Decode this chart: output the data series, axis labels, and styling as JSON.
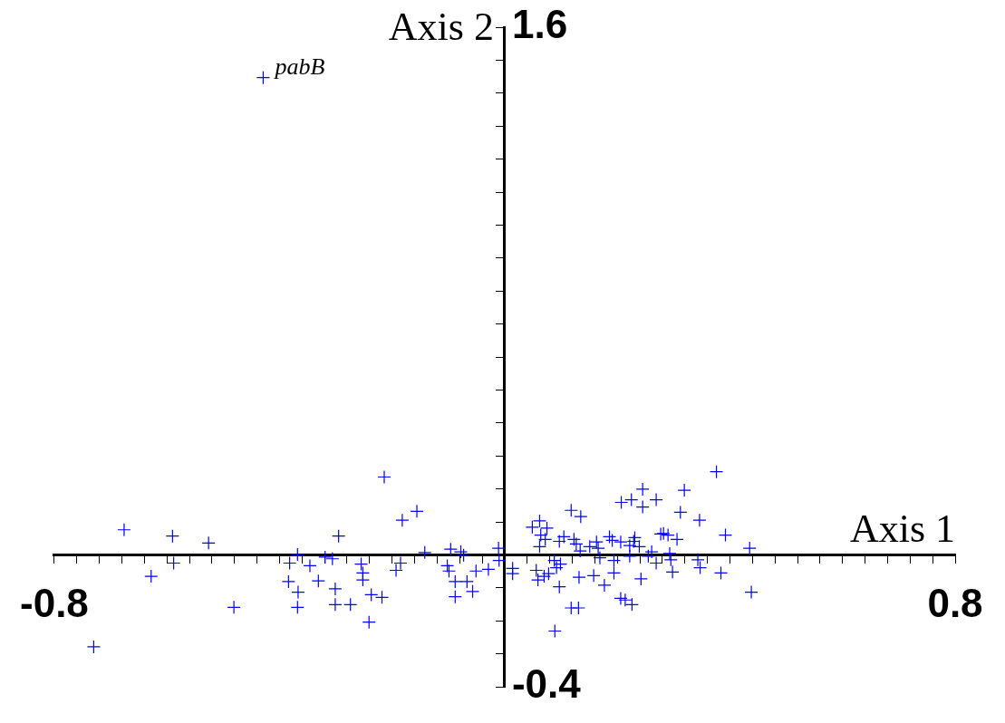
{
  "chart_data": {
    "type": "scatter",
    "xlabel": "Axis 1",
    "ylabel": "Axis 2",
    "color": "#0000ff",
    "marker": "cross",
    "legend": false,
    "grid": false,
    "xlim": [
      -0.8,
      0.8
    ],
    "ylim": [
      -0.4,
      1.6
    ],
    "xticks": [
      -0.8,
      {
        "value": -0.76,
        "label": null
      },
      {
        "value": -0.72,
        "label": null
      },
      {
        "value": -0.68,
        "label": null
      },
      {
        "value": -0.64,
        "label": null
      },
      {
        "value": -0.6,
        "label": null
      },
      {
        "value": -0.56,
        "label": null
      },
      {
        "value": -0.52,
        "label": null
      },
      {
        "value": -0.48,
        "label": null
      },
      {
        "value": -0.44,
        "label": null
      },
      {
        "value": -0.4,
        "label": null
      },
      {
        "value": -0.36,
        "label": null
      },
      {
        "value": -0.32,
        "label": null
      },
      {
        "value": -0.28,
        "label": null
      },
      {
        "value": -0.24,
        "label": null
      },
      {
        "value": -0.2,
        "label": null
      },
      {
        "value": -0.16,
        "label": null
      },
      {
        "value": -0.12,
        "label": null
      },
      {
        "value": -0.08,
        "label": null
      },
      {
        "value": -0.04,
        "label": null
      },
      {
        "value": 0.04,
        "label": null
      },
      {
        "value": 0.08,
        "label": null
      },
      {
        "value": 0.12,
        "label": null
      },
      {
        "value": 0.16,
        "label": null
      },
      {
        "value": 0.2,
        "label": null
      },
      {
        "value": 0.24,
        "label": null
      },
      {
        "value": 0.28,
        "label": null
      },
      {
        "value": 0.32,
        "label": null
      },
      {
        "value": 0.36,
        "label": null
      },
      {
        "value": 0.4,
        "label": null
      },
      {
        "value": 0.44,
        "label": null
      },
      {
        "value": 0.48,
        "label": null
      },
      {
        "value": 0.52,
        "label": null
      },
      {
        "value": 0.56,
        "label": null
      },
      {
        "value": 0.6,
        "label": null
      },
      {
        "value": 0.64,
        "label": null
      },
      {
        "value": 0.68,
        "label": null
      },
      {
        "value": 0.72,
        "label": null
      },
      {
        "value": 0.76,
        "label": null
      },
      0.8
    ],
    "yticks": [
      -0.4,
      {
        "value": -0.3,
        "label": null
      },
      {
        "value": -0.2,
        "label": null
      },
      {
        "value": -0.1,
        "label": null
      },
      {
        "value": 0.1,
        "label": null
      },
      {
        "value": 0.2,
        "label": null
      },
      {
        "value": 0.3,
        "label": null
      },
      {
        "value": 0.4,
        "label": null
      },
      {
        "value": 0.5,
        "label": null
      },
      {
        "value": 0.6,
        "label": null
      },
      {
        "value": 0.7,
        "label": null
      },
      {
        "value": 0.8,
        "label": null
      },
      {
        "value": 0.9,
        "label": null
      },
      {
        "value": 1.0,
        "label": null
      },
      {
        "value": 1.1,
        "label": null
      },
      {
        "value": 1.2,
        "label": null
      },
      {
        "value": 1.3,
        "label": null
      },
      {
        "value": 1.4,
        "label": null
      },
      {
        "value": 1.5,
        "label": null
      },
      1.6
    ],
    "annotations": [
      {
        "text": "pabB",
        "x": -0.429,
        "y": 1.447
      }
    ],
    "x": [
      -0.429,
      -0.676,
      -0.59,
      -0.526,
      -0.588,
      -0.628,
      -0.481,
      -0.73,
      -0.382,
      -0.384,
      -0.214,
      -0.156,
      -0.182,
      -0.295,
      -0.142,
      -0.096,
      -0.078,
      -0.073,
      -0.011,
      -0.368,
      -0.319,
      -0.306,
      -0.346,
      -0.255,
      -0.185,
      -0.193,
      -0.102,
      -0.099,
      -0.051,
      -0.029,
      -0.01,
      -0.331,
      -0.252,
      -0.252,
      -0.367,
      -0.301,
      -0.067,
      -0.088,
      -0.057,
      -0.237,
      -0.218,
      -0.088,
      -0.368,
      -0.301,
      -0.274,
      -0.241,
      0.207,
      0.225,
      0.118,
      0.135,
      0.062,
      0.049,
      0.075,
      0.064,
      0.072,
      0.105,
      0.097,
      0.123,
      0.127,
      0.062,
      0.134,
      0.163,
      0.166,
      0.151,
      0.186,
      0.191,
      0.206,
      0.222,
      0.229,
      0.222,
      0.169,
      0.194,
      0.088,
      0.099,
      0.092,
      0.014,
      0.014,
      0.056,
      0.078,
      0.07,
      0.059,
      0.097,
      0.132,
      0.158,
      0.194,
      0.177,
      0.206,
      0.214,
      0.226,
      0.118,
      0.131,
      0.089,
      0.376,
      0.245,
      0.319,
      0.269,
      0.245,
      0.312,
      0.346,
      0.231,
      0.239,
      0.282,
      0.29,
      0.277,
      0.306,
      0.392,
      0.435,
      0.261,
      0.293,
      0.255,
      0.295,
      0.269,
      0.343,
      0.347,
      0.298,
      0.384,
      0.242,
      0.438
    ],
    "values": [
      1.447,
      0.076,
      0.057,
      0.036,
      -0.025,
      -0.065,
      -0.159,
      -0.279,
      -0.025,
      -0.081,
      0.236,
      0.132,
      0.105,
      0.057,
      0.007,
      0.017,
      0.009,
      -0.001,
      0.02,
      0.001,
      -0.007,
      -0.012,
      -0.033,
      -0.028,
      -0.025,
      -0.047,
      -0.033,
      -0.049,
      -0.049,
      -0.044,
      -0.017,
      -0.079,
      -0.055,
      -0.076,
      -0.113,
      -0.103,
      -0.081,
      -0.081,
      -0.111,
      -0.121,
      -0.129,
      -0.127,
      -0.159,
      -0.151,
      -0.151,
      -0.204,
      0.159,
      0.167,
      0.135,
      0.116,
      0.103,
      0.084,
      0.081,
      0.06,
      0.047,
      0.055,
      0.041,
      0.047,
      0.033,
      0.025,
      0.012,
      0.039,
      0.02,
      0.025,
      0.055,
      0.044,
      0.039,
      0.028,
      0.041,
      -0.004,
      -0.009,
      -0.017,
      -0.017,
      -0.028,
      -0.039,
      -0.041,
      -0.057,
      -0.047,
      -0.057,
      -0.065,
      -0.076,
      -0.097,
      -0.068,
      -0.063,
      -0.055,
      -0.092,
      -0.132,
      -0.137,
      -0.151,
      -0.161,
      -0.161,
      -0.231,
      0.252,
      0.199,
      0.196,
      0.167,
      0.145,
      0.129,
      0.105,
      0.052,
      0.025,
      0.065,
      0.06,
      0.063,
      0.047,
      0.06,
      0.02,
      0.009,
      0.004,
      -0.004,
      -0.015,
      -0.025,
      -0.015,
      -0.039,
      -0.052,
      -0.055,
      -0.073,
      -0.113
    ]
  }
}
